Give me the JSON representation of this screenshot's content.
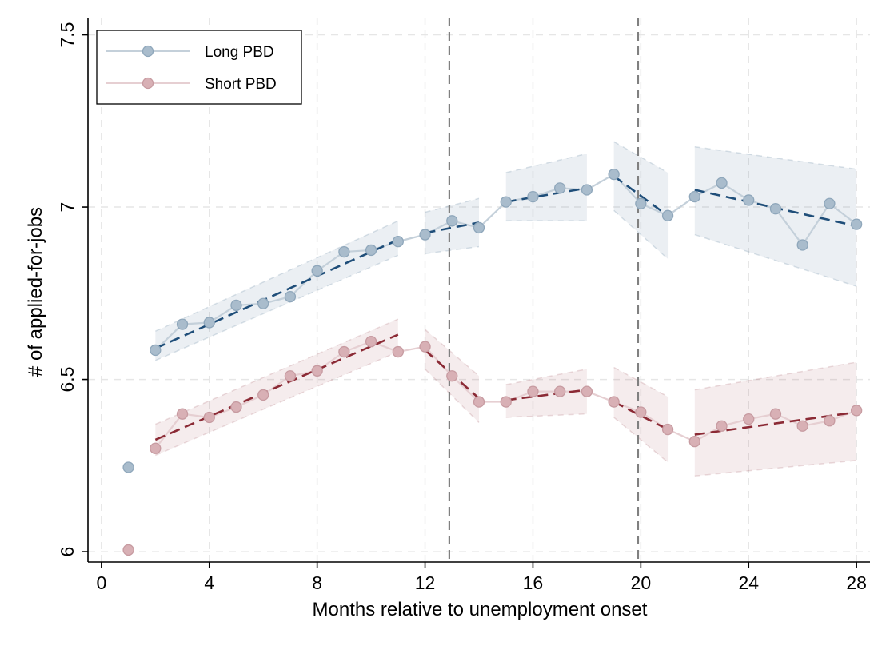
{
  "chart_data": {
    "type": "line",
    "xlabel": "Months relative to unemployment onset",
    "ylabel": "# of applied-for-jobs",
    "xlim": [
      -0.5,
      28.5
    ],
    "ylim": [
      5.97,
      7.55
    ],
    "x_ticks": [
      0,
      4,
      8,
      12,
      16,
      20,
      24,
      28
    ],
    "x_tick_labels": [
      "0",
      "4",
      "8",
      "12",
      "16",
      "20",
      "24",
      "28"
    ],
    "y_ticks": [
      6,
      6.5,
      7,
      7.5
    ],
    "y_tick_labels": [
      "6",
      "6.5",
      "7",
      "7.5"
    ],
    "grid": true,
    "legend_position": "top-left",
    "vertical_reference_lines": [
      12.9,
      19.9
    ],
    "series": [
      {
        "name": "Long PBD",
        "color": "#1f4e79",
        "marker_color": "#a9bccc",
        "x": [
          1,
          2,
          3,
          4,
          5,
          6,
          7,
          8,
          9,
          10,
          11,
          12,
          13,
          14,
          15,
          16,
          17,
          18,
          19,
          20,
          21,
          22,
          23,
          24,
          25,
          26,
          27,
          28
        ],
        "y": [
          6.245,
          6.585,
          6.66,
          6.665,
          6.715,
          6.72,
          6.74,
          6.815,
          6.87,
          6.875,
          6.9,
          6.92,
          6.96,
          6.94,
          7.015,
          7.03,
          7.055,
          7.05,
          7.095,
          7.01,
          6.975,
          7.03,
          7.07,
          7.02,
          6.995,
          6.89,
          7.01,
          6.95
        ],
        "fit_segments": [
          {
            "x": [
              2,
              11
            ],
            "y": [
              6.59,
              6.905
            ],
            "ci_low": [
              6.555,
              6.86
            ],
            "ci_high": [
              6.64,
              6.96
            ]
          },
          {
            "x": [
              12,
              14
            ],
            "y": [
              6.925,
              6.955
            ],
            "ci_low": [
              6.865,
              6.885
            ],
            "ci_high": [
              6.985,
              7.025
            ]
          },
          {
            "x": [
              15,
              18
            ],
            "y": [
              7.015,
              7.055
            ],
            "ci_low": [
              6.96,
              6.96
            ],
            "ci_high": [
              7.1,
              7.155
            ]
          },
          {
            "x": [
              19,
              21
            ],
            "y": [
              7.09,
              6.975
            ],
            "ci_low": [
              6.99,
              6.85
            ],
            "ci_high": [
              7.19,
              7.1
            ]
          },
          {
            "x": [
              22,
              28
            ],
            "y": [
              7.05,
              6.945
            ],
            "ci_low": [
              6.92,
              6.77
            ],
            "ci_high": [
              7.175,
              7.11
            ]
          }
        ]
      },
      {
        "name": "Short PBD",
        "color": "#8b2a35",
        "marker_color": "#d8b0b5",
        "x": [
          1,
          2,
          3,
          4,
          5,
          6,
          7,
          8,
          9,
          10,
          11,
          12,
          13,
          14,
          15,
          16,
          17,
          18,
          19,
          20,
          21,
          22,
          23,
          24,
          25,
          26,
          27,
          28
        ],
        "y": [
          6.005,
          6.3,
          6.4,
          6.39,
          6.42,
          6.455,
          6.51,
          6.525,
          6.58,
          6.61,
          6.58,
          6.595,
          6.51,
          6.435,
          6.435,
          6.465,
          6.465,
          6.465,
          6.435,
          6.405,
          6.355,
          6.32,
          6.365,
          6.385,
          6.4,
          6.365,
          6.38,
          6.41
        ],
        "fit_segments": [
          {
            "x": [
              2,
              11
            ],
            "y": [
              6.325,
              6.63
            ],
            "ci_low": [
              6.28,
              6.58
            ],
            "ci_high": [
              6.37,
              6.675
            ]
          },
          {
            "x": [
              12,
              14
            ],
            "y": [
              6.585,
              6.445
            ],
            "ci_low": [
              6.53,
              6.375
            ],
            "ci_high": [
              6.645,
              6.51
            ]
          },
          {
            "x": [
              15,
              18
            ],
            "y": [
              6.44,
              6.47
            ],
            "ci_low": [
              6.39,
              6.4
            ],
            "ci_high": [
              6.485,
              6.53
            ]
          },
          {
            "x": [
              19,
              21
            ],
            "y": [
              6.435,
              6.355
            ],
            "ci_low": [
              6.39,
              6.26
            ],
            "ci_high": [
              6.535,
              6.45
            ]
          },
          {
            "x": [
              22,
              28
            ],
            "y": [
              6.34,
              6.405
            ],
            "ci_low": [
              6.22,
              6.265
            ],
            "ci_high": [
              6.47,
              6.55
            ]
          }
        ]
      }
    ]
  }
}
